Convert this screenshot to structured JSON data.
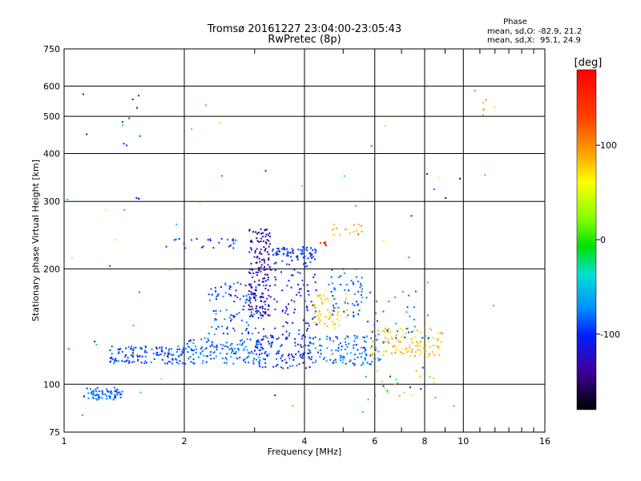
{
  "chart_data": {
    "type": "scatter",
    "title": "Tromsø 20161227 23:04:00-23:05:43",
    "subtitle": "RwPretec (8p)",
    "xlabel": "Frequency [MHz]",
    "ylabel": "Stationary phase Virtual Height [km]",
    "x_scale": "log",
    "y_scale": "log",
    "xlim": [
      1,
      16
    ],
    "ylim": [
      75,
      750
    ],
    "x_ticks": [
      {
        "value": 1,
        "label": "1"
      },
      {
        "value": 2,
        "label": "2"
      },
      {
        "value": 4,
        "label": "4"
      },
      {
        "value": 6,
        "label": "6"
      },
      {
        "value": 8,
        "label": "8"
      },
      {
        "value": 10,
        "label": "10"
      },
      {
        "value": 16,
        "label": "16"
      }
    ],
    "y_ticks": [
      {
        "value": 75,
        "label": "75"
      },
      {
        "value": 100,
        "label": "100"
      },
      {
        "value": 200,
        "label": "200"
      },
      {
        "value": 300,
        "label": "300"
      },
      {
        "value": 400,
        "label": "400"
      },
      {
        "value": 500,
        "label": "500"
      },
      {
        "value": 600,
        "label": "600"
      },
      {
        "value": 750,
        "label": "750"
      }
    ],
    "grid": true,
    "stats": {
      "heading": "Phase",
      "line_o": "mean, sd,O: -82.9, 21.2",
      "line_x": "mean, sd,X:  95.1, 24.9"
    },
    "colorbar": {
      "label": "[deg]",
      "range": [
        -180,
        180
      ],
      "ticks": [
        {
          "value": 100,
          "label": "100"
        },
        {
          "value": 0,
          "label": "0"
        },
        {
          "value": -100,
          "label": "-100"
        }
      ]
    },
    "clusters": [
      {
        "x": [
          1.12,
          1.4
        ],
        "y": [
          91,
          98
        ],
        "phase": [
          -95,
          -70
        ],
        "n": 70
      },
      {
        "x": [
          1.3,
          2.0
        ],
        "y": [
          113,
          126
        ],
        "phase": [
          -110,
          -70
        ],
        "n": 130
      },
      {
        "x": [
          2.0,
          3.2
        ],
        "y": [
          113,
          132
        ],
        "phase": [
          -100,
          -60
        ],
        "n": 140
      },
      {
        "x": [
          3.0,
          4.2
        ],
        "y": [
          110,
          135
        ],
        "phase": [
          -125,
          -75
        ],
        "n": 120
      },
      {
        "x": [
          2.3,
          3.2
        ],
        "y": [
          135,
          185
        ],
        "phase": [
          -110,
          -60
        ],
        "n": 110
      },
      {
        "x": [
          2.9,
          3.3
        ],
        "y": [
          150,
          255
        ],
        "phase": [
          -150,
          -105
        ],
        "n": 170
      },
      {
        "x": [
          3.3,
          4.3
        ],
        "y": [
          135,
          230
        ],
        "phase": [
          -120,
          -85
        ],
        "n": 110
      },
      {
        "x": [
          3.3,
          4.3
        ],
        "y": [
          214,
          226
        ],
        "phase": [
          -100,
          -80
        ],
        "n": 45
      },
      {
        "x": [
          1.8,
          2.7
        ],
        "y": [
          225,
          240
        ],
        "phase": [
          -105,
          -80
        ],
        "n": 25
      },
      {
        "x": [
          4.1,
          6.2
        ],
        "y": [
          112,
          134
        ],
        "phase": [
          -100,
          -55
        ],
        "n": 120
      },
      {
        "x": [
          4.2,
          5.2
        ],
        "y": [
          140,
          172
        ],
        "phase": [
          85,
          120
        ],
        "n": 60
      },
      {
        "x": [
          4.6,
          5.6
        ],
        "y": [
          150,
          200
        ],
        "phase": [
          -100,
          -70
        ],
        "n": 55
      },
      {
        "x": [
          5.8,
          8.9
        ],
        "y": [
          118,
          140
        ],
        "phase": [
          90,
          130
        ],
        "n": 110
      },
      {
        "x": [
          5.6,
          8.2
        ],
        "y": [
          128,
          175
        ],
        "phase": [
          -95,
          -55
        ],
        "n": 40
      },
      {
        "x": [
          4.7,
          5.6
        ],
        "y": [
          245,
          262
        ],
        "phase": [
          105,
          135
        ],
        "n": 14
      },
      {
        "x": [
          4.3,
          4.6
        ],
        "y": [
          230,
          236
        ],
        "phase": [
          150,
          175
        ],
        "n": 7
      },
      {
        "x": [
          5.7,
          8.6
        ],
        "y": [
          92,
          112
        ],
        "phase": [
          -120,
          130
        ],
        "n": 25
      },
      {
        "x": [
          1.4,
          1.55
        ],
        "y": [
          300,
          600
        ],
        "phase": [
          -110,
          -80
        ],
        "n": 10
      },
      {
        "x": [
          11.0,
          11.8
        ],
        "y": [
          500,
          610
        ],
        "phase": [
          110,
          140
        ],
        "n": 5
      },
      {
        "x": [
          1.0,
          12.0
        ],
        "y": [
          80,
          600
        ],
        "phase": [
          -150,
          150
        ],
        "n": 60
      }
    ]
  }
}
